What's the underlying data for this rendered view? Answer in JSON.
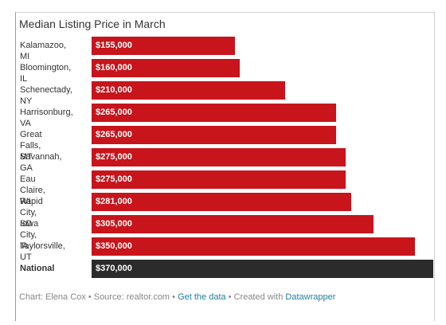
{
  "chart_data": {
    "type": "bar",
    "orientation": "horizontal",
    "title": "Median Listing Price in March",
    "categories": [
      "Kalamazoo, MI",
      "Bloomington, IL",
      "Schenectady, NY",
      "Harrisonburg, VA",
      "Great Falls, MT",
      "Savannah, GA",
      "Eau Claire, WI",
      "Rapid City, SD",
      "Iowa City, IA",
      "Taylorsville, UT",
      "National"
    ],
    "values": [
      155000,
      160000,
      210000,
      265000,
      265000,
      275000,
      275000,
      281000,
      305000,
      350000,
      370000
    ],
    "value_labels": [
      "$155,000",
      "$160,000",
      "$210,000",
      "$265,000",
      "$265,000",
      "$275,000",
      "$275,000",
      "$281,000",
      "$305,000",
      "$350,000",
      "$370,000"
    ],
    "xlim": [
      0,
      370000
    ],
    "colors": {
      "city": "#c8141b",
      "national": "#2b2b2b"
    }
  },
  "footer": {
    "prefix": "Chart: Elena Cox • Source: realtor.com • ",
    "get_data": "Get the data",
    "middle": " • Created with ",
    "datawrapper": "Datawrapper"
  }
}
